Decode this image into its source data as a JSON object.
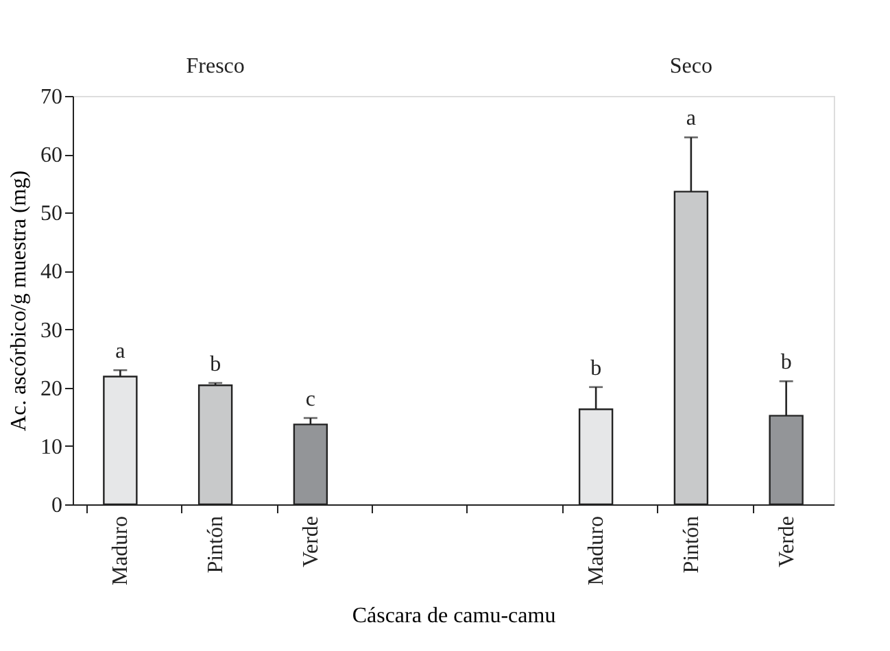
{
  "chart_data": {
    "type": "bar",
    "ylabel": "Ac. ascórbico/g muestra (mg)",
    "xlabel": "Cáscara de camu-camu",
    "categories": [
      "Maduro",
      "Pintón",
      "Verde",
      null,
      null,
      "Maduro",
      "Pintón",
      "Verde"
    ],
    "values": [
      21.9,
      20.4,
      13.7,
      null,
      null,
      16.3,
      53.6,
      15.2
    ],
    "errors": [
      [
        21.9,
        23.0
      ],
      [
        20.4,
        20.8
      ],
      [
        13.7,
        14.8
      ],
      null,
      null,
      [
        16.3,
        20.1
      ],
      [
        53.6,
        62.9
      ],
      [
        15.2,
        21.1
      ]
    ],
    "colors": [
      "#e6e7e8",
      "#c8c9ca",
      "#939598",
      null,
      null,
      "#e6e7e8",
      "#c8c9ca",
      "#939598"
    ],
    "value_labels": [
      "a",
      "b",
      "c",
      null,
      null,
      "b",
      "a",
      "b"
    ],
    "annotations": [
      "Fresco",
      "Seco"
    ],
    "ylim": [
      0,
      70
    ],
    "yticks": [
      0,
      10,
      20,
      30,
      40,
      50,
      60,
      70
    ],
    "grid": false
  }
}
